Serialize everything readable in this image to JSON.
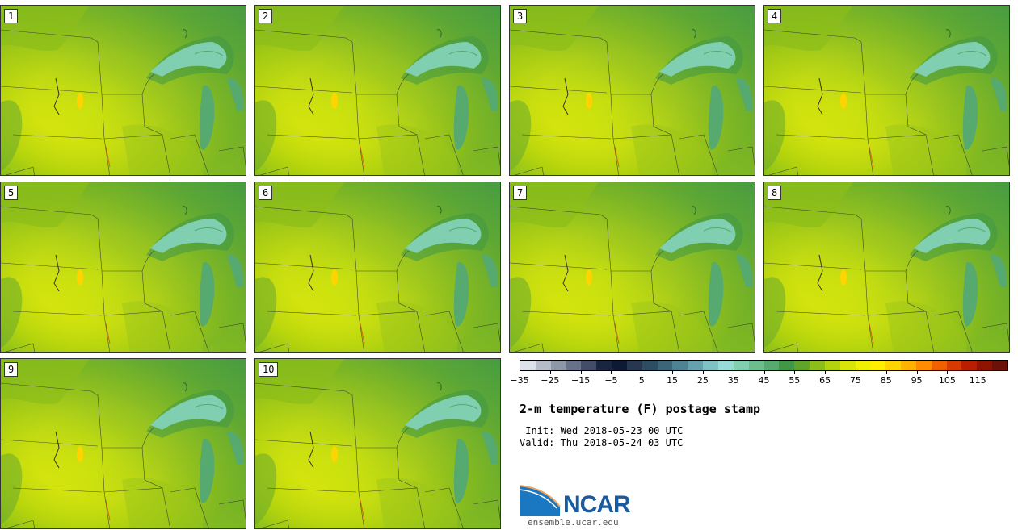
{
  "figure": {
    "title": "2-m temperature (F) postage stamp",
    "init_line": " Init: Wed 2018-05-23 00 UTC",
    "valid_line": "Valid: Thu 2018-05-24 03 UTC",
    "logo_text": "NCAR",
    "website": "ensemble.ucar.edu"
  },
  "panels": [
    {
      "label": "1"
    },
    {
      "label": "2"
    },
    {
      "label": "3"
    },
    {
      "label": "4"
    },
    {
      "label": "5"
    },
    {
      "label": "6"
    },
    {
      "label": "7"
    },
    {
      "label": "8"
    },
    {
      "label": "9"
    },
    {
      "label": "10"
    }
  ],
  "colorbar": {
    "tick_labels": [
      "−35",
      "−25",
      "−15",
      "−5",
      "5",
      "15",
      "25",
      "35",
      "45",
      "55",
      "65",
      "75",
      "85",
      "95",
      "105",
      "115"
    ],
    "colors": [
      "#dde2e9",
      "#b6bcc7",
      "#8e97a6",
      "#67718a",
      "#434d67",
      "#1a2540",
      "#0e1a33",
      "#26374f",
      "#2d4d63",
      "#3c6678",
      "#4f8292",
      "#66a2ad",
      "#7ec2c4",
      "#94dcd5",
      "#7fcfb0",
      "#6bbd8e",
      "#56a96f",
      "#3f9846",
      "#5ea52a",
      "#8cbd1a",
      "#b5d20e",
      "#d7e507",
      "#f0f002",
      "#ffee00",
      "#ffd400",
      "#ffb300",
      "#ff8c00",
      "#f06000",
      "#d63a00",
      "#b81e00",
      "#8e1400",
      "#6a1208"
    ],
    "unit": "F"
  }
}
